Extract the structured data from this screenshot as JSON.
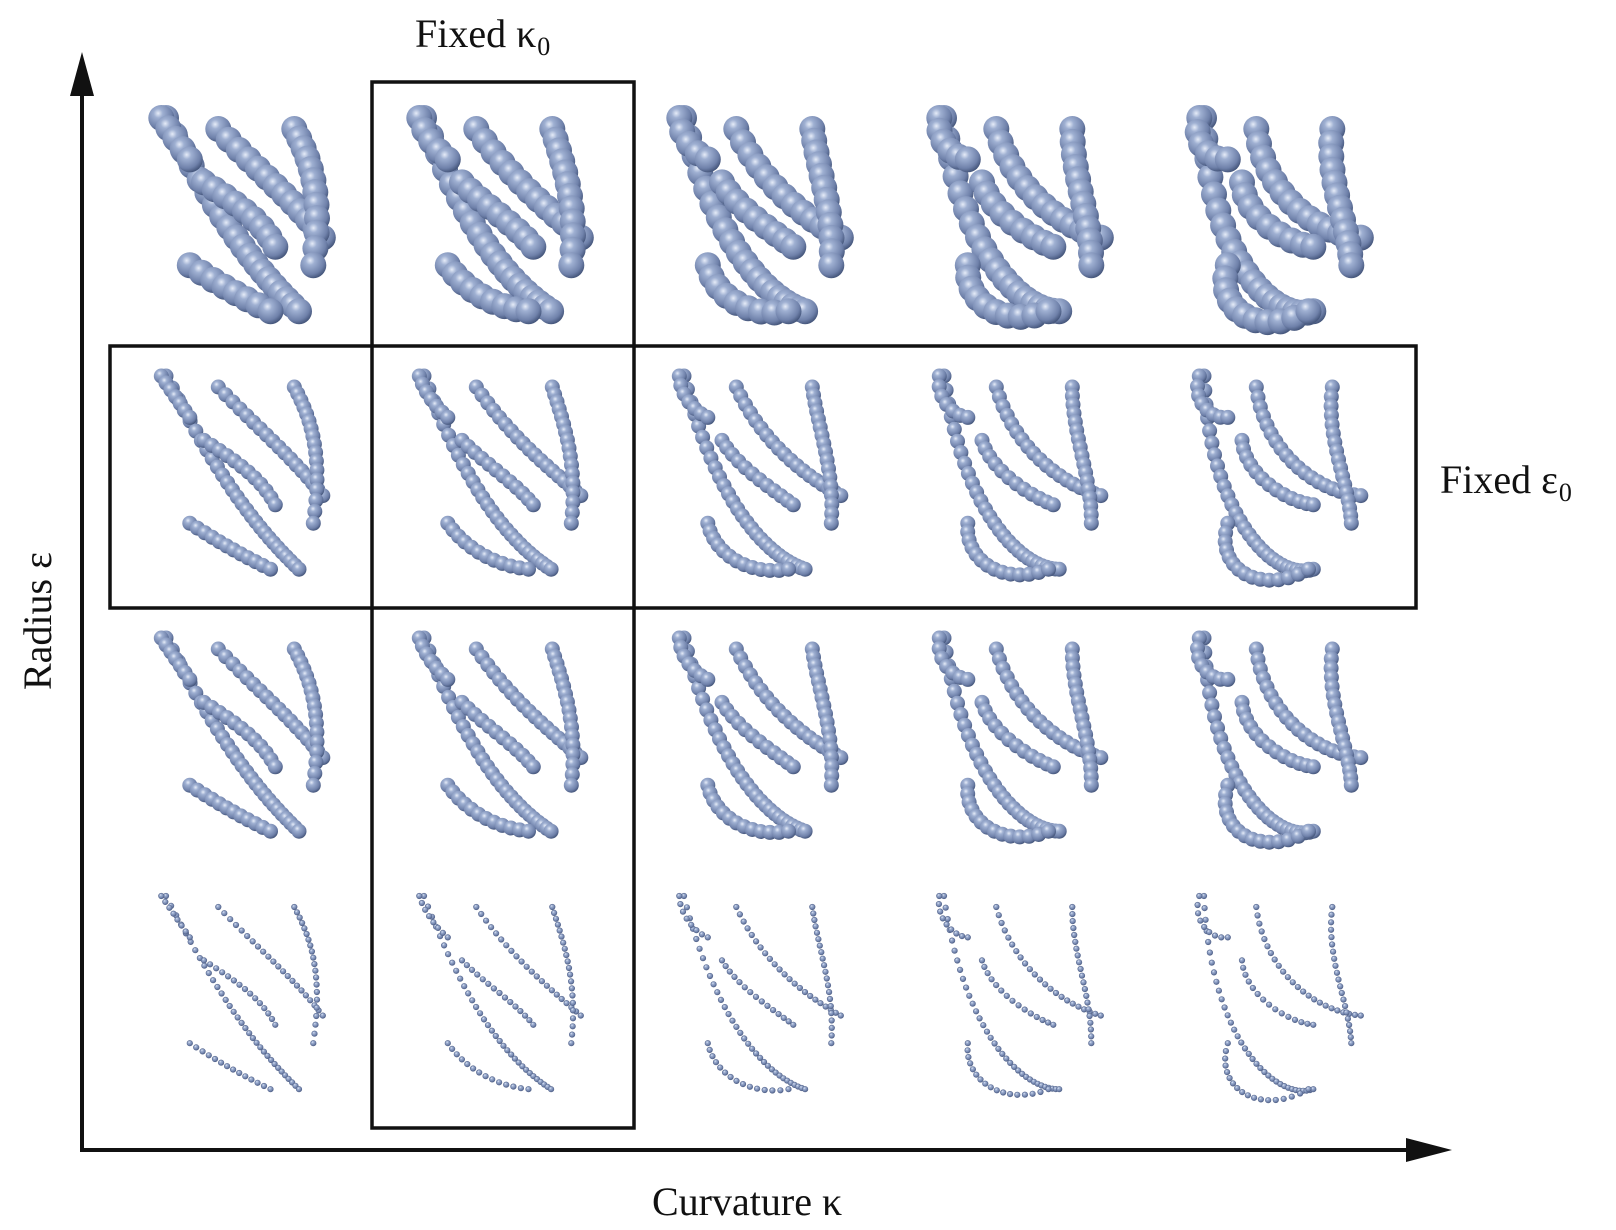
{
  "labels": {
    "fixed_kappa": "Fixed κ",
    "fixed_kappa_sub": "0",
    "fixed_epsilon": "Fixed ε",
    "fixed_epsilon_sub": "0",
    "x_axis": "Curvature κ",
    "y_axis": "Radius ε"
  },
  "grid": {
    "rows": 4,
    "columns": 5,
    "row_axis": "Radius ε (decreasing downward)",
    "column_axis": "Curvature κ (increasing rightward)",
    "highlighted_column": 2,
    "highlighted_row": 2
  },
  "colors": {
    "sphere": "#7a8cb4",
    "sphere_highlight": "#dce4f4",
    "sphere_shadow": "#3c4a6a",
    "ink": "#111111"
  }
}
